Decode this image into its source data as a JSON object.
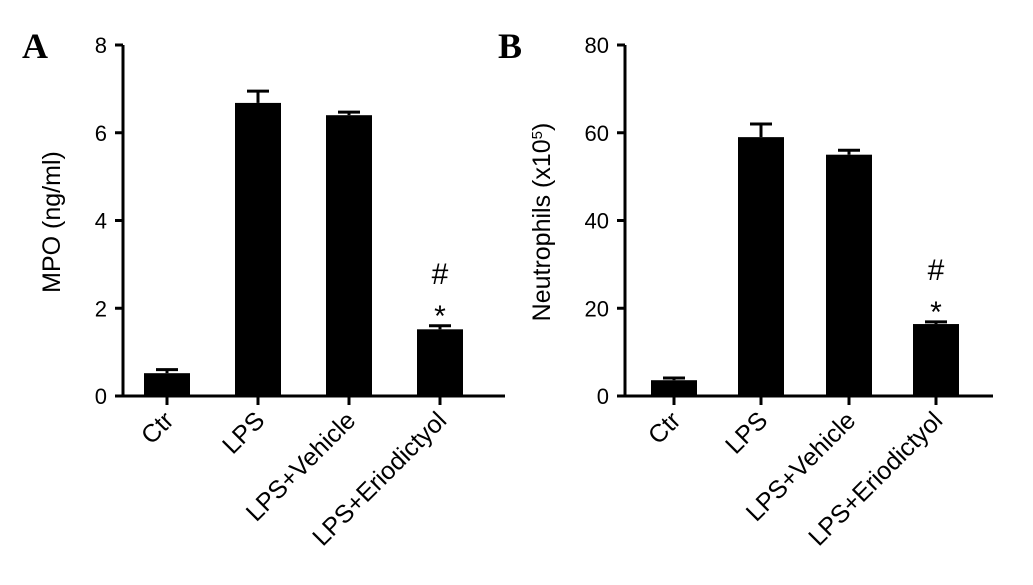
{
  "chart_data": [
    {
      "type": "bar",
      "panel": "A",
      "ylabel": "MPO (ng/ml)",
      "ylabel_suffix": "",
      "categories": [
        "Ctr",
        "LPS",
        "LPS+Vehicle",
        "LPS+Eriodictyol"
      ],
      "values": [
        0.52,
        6.68,
        6.4,
        1.52
      ],
      "errors": [
        0.08,
        0.27,
        0.07,
        0.08
      ],
      "annotations": [
        "",
        "",
        "",
        "#\n*"
      ],
      "ylim": [
        0,
        8
      ],
      "yticks": [
        0,
        2,
        4,
        6,
        8
      ],
      "bar_color": "#000000"
    },
    {
      "type": "bar",
      "panel": "B",
      "ylabel": "Neutrophils (x10",
      "ylabel_sup": "5",
      "ylabel_suffix": ")",
      "categories": [
        "Ctr",
        "LPS",
        "LPS+Vehicle",
        "LPS+Eriodictyol"
      ],
      "values": [
        3.6,
        59.0,
        55.0,
        16.4
      ],
      "errors": [
        0.5,
        3.0,
        1.0,
        0.5
      ],
      "annotations": [
        "",
        "",
        "",
        "#\n*"
      ],
      "ylim": [
        0,
        80
      ],
      "yticks": [
        0,
        20,
        40,
        60,
        80
      ],
      "bar_color": "#000000"
    }
  ]
}
